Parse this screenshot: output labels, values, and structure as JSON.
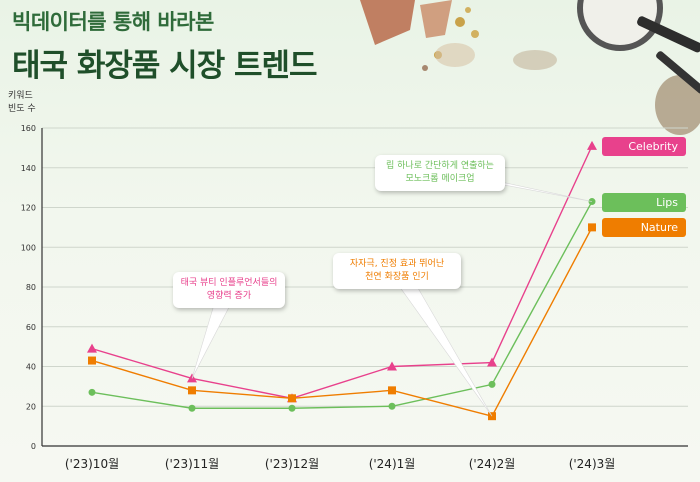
{
  "header": {
    "subtitle": "빅데이터를 통해 바라본",
    "title": "태국 화장품 시장 트렌드"
  },
  "y_unit_label": [
    "키워드",
    "빈도 수"
  ],
  "chart_data": {
    "type": "line",
    "categories": [
      "('23)10월",
      "('23)11월",
      "('23)12월",
      "('24)1월",
      "('24)2월",
      "('24)3월"
    ],
    "ylim": [
      0,
      160
    ],
    "yticks": [
      0,
      20,
      40,
      60,
      80,
      100,
      120,
      140,
      160
    ],
    "grid": true,
    "legend_placement": "right",
    "series": [
      {
        "name": "Celebrity",
        "color": "#e8418c",
        "marker": "triangle",
        "values": [
          49,
          34,
          24,
          40,
          42,
          151
        ]
      },
      {
        "name": "Lips",
        "color": "#6cbf5b",
        "marker": "circle",
        "values": [
          27,
          19,
          19,
          20,
          31,
          123
        ]
      },
      {
        "name": "Nature",
        "color": "#ef7d00",
        "marker": "square",
        "values": [
          43,
          28,
          24,
          28,
          15,
          110
        ]
      }
    ],
    "annotations": [
      {
        "lines": [
          "태국 뷰티 인플루언서들의",
          "영향력 증가"
        ],
        "color": "#e8418c",
        "target": {
          "series": "Celebrity",
          "index": 1
        }
      },
      {
        "lines": [
          "자자극, 진정 효과 뛰어난",
          "천연 화장품 인기"
        ],
        "color": "#ef7d00",
        "target": {
          "series": "Nature",
          "index": 4
        }
      },
      {
        "lines": [
          "립 하나로 간단하게 연출하는",
          "모노크롬 메이크업"
        ],
        "color": "#6cbf5b",
        "target": {
          "series": "Lips",
          "index": 5
        }
      }
    ]
  }
}
